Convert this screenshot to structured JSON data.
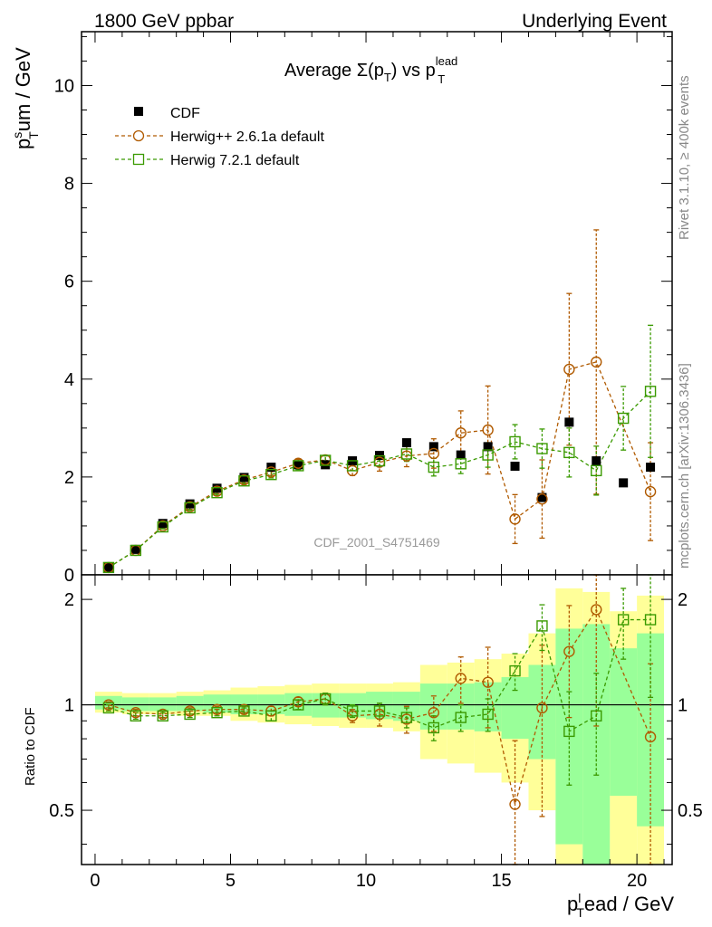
{
  "header": {
    "left": "1800 GeV ppbar",
    "right": "Underlying Event"
  },
  "side_labels": {
    "rivet": "Rivet 3.1.10, ≥ 400k events",
    "mcplots": "mcplots.cern.ch [arXiv:1306.3436]"
  },
  "watermark": "CDF_2001_S4751469",
  "colors": {
    "cdf": "#000000",
    "herwigpp": "#b05a00",
    "herwig7": "#3a9a00",
    "band_yellow": "#ffff99",
    "band_green": "#99ff99"
  },
  "chart_data": [
    {
      "type": "scatter",
      "panel": "main",
      "title": "Average Σ(p_T) vs p_T^lead",
      "title_parts": {
        "a": "Average ",
        "b": "Σ(p",
        "c": "T",
        "d": ") vs p",
        "e": "lead",
        "f": "T"
      },
      "ylabel_parts": {
        "a": "p",
        "b": "s",
        "c": "T",
        "d": "um / GeV"
      },
      "xlim": [
        -0.5,
        21.3
      ],
      "ylim": [
        0,
        11.1
      ],
      "yticks": [
        0,
        2,
        4,
        6,
        8,
        10
      ],
      "ytick_labels": [
        "0",
        "2",
        "4",
        "6",
        "8",
        "10"
      ],
      "legend_position": "top-left",
      "series": [
        {
          "name": "CDF",
          "marker": "filled-square",
          "x": [
            0.5,
            1.5,
            2.5,
            3.5,
            4.5,
            5.5,
            6.5,
            7.5,
            8.5,
            9.5,
            10.5,
            11.5,
            12.5,
            13.5,
            14.5,
            15.5,
            16.5,
            17.5,
            18.5,
            19.5,
            20.5
          ],
          "y": [
            0.15,
            0.52,
            1.05,
            1.45,
            1.77,
            1.99,
            2.2,
            2.25,
            2.25,
            2.33,
            2.44,
            2.7,
            2.62,
            2.45,
            2.62,
            2.22,
            1.58,
            3.12,
            2.33,
            1.88,
            2.2
          ]
        },
        {
          "name": "Herwig++ 2.6.1a default",
          "marker": "open-circle",
          "x": [
            0.5,
            1.5,
            2.5,
            3.5,
            4.5,
            5.5,
            6.5,
            7.5,
            8.5,
            9.5,
            10.5,
            11.5,
            12.5,
            13.5,
            14.5,
            15.5,
            16.5,
            17.5,
            18.5,
            20.5
          ],
          "y": [
            0.15,
            0.5,
            1.0,
            1.39,
            1.71,
            1.94,
            2.1,
            2.28,
            2.35,
            2.13,
            2.3,
            2.43,
            2.48,
            2.9,
            2.96,
            1.14,
            1.55,
            4.2,
            4.35,
            1.7
          ],
          "err": [
            0.02,
            0.03,
            0.04,
            0.05,
            0.05,
            0.06,
            0.07,
            0.08,
            0.09,
            0.1,
            0.18,
            0.22,
            0.3,
            0.45,
            0.9,
            0.5,
            0.8,
            1.55,
            2.7,
            1.0
          ]
        },
        {
          "name": "Herwig 7.2.1 default",
          "marker": "open-square",
          "x": [
            0.5,
            1.5,
            2.5,
            3.5,
            4.5,
            5.5,
            6.5,
            7.5,
            8.5,
            9.5,
            10.5,
            11.5,
            12.5,
            13.5,
            14.5,
            15.5,
            16.5,
            17.5,
            18.5,
            19.5,
            20.5
          ],
          "y": [
            0.15,
            0.5,
            0.98,
            1.37,
            1.68,
            1.92,
            2.05,
            2.23,
            2.34,
            2.23,
            2.33,
            2.47,
            2.2,
            2.27,
            2.45,
            2.72,
            2.58,
            2.5,
            2.13,
            3.2,
            3.75
          ],
          "err": [
            0.02,
            0.03,
            0.04,
            0.05,
            0.05,
            0.06,
            0.07,
            0.08,
            0.09,
            0.1,
            0.12,
            0.15,
            0.18,
            0.2,
            0.25,
            0.35,
            0.4,
            0.5,
            0.5,
            0.65,
            1.35
          ]
        }
      ]
    },
    {
      "type": "scatter",
      "panel": "ratio",
      "ylabel": "Ratio to CDF",
      "xlabel_parts": {
        "a": "p",
        "b": "l",
        "c": "T",
        "d": "ead / GeV"
      },
      "xlim": [
        -0.5,
        21.3
      ],
      "ylim": [
        0.35,
        2.35
      ],
      "xticks": [
        0,
        5,
        10,
        15,
        20
      ],
      "xtick_labels": [
        "0",
        "5",
        "10",
        "15",
        "20"
      ],
      "yticks": [
        0.5,
        1,
        2
      ],
      "ytick_labels": [
        "0.5",
        "1",
        "2"
      ],
      "reference_line": 1,
      "bands": {
        "x_edges": [
          0,
          1,
          2,
          3,
          4,
          5,
          6,
          7,
          8,
          9,
          10,
          11,
          12,
          13,
          14,
          15,
          16,
          17,
          18,
          19,
          20,
          21
        ],
        "yellow": [
          [
            0.95,
            1.09
          ],
          [
            0.94,
            1.08
          ],
          [
            0.94,
            1.08
          ],
          [
            0.93,
            1.09
          ],
          [
            0.93,
            1.1
          ],
          [
            0.9,
            1.12
          ],
          [
            0.89,
            1.13
          ],
          [
            0.88,
            1.14
          ],
          [
            0.87,
            1.15
          ],
          [
            0.86,
            1.15
          ],
          [
            0.86,
            1.15
          ],
          [
            0.84,
            1.16
          ],
          [
            0.7,
            1.3
          ],
          [
            0.68,
            1.32
          ],
          [
            0.64,
            1.35
          ],
          [
            0.6,
            1.4
          ],
          [
            0.5,
            1.6
          ],
          [
            0.35,
            2.15
          ],
          [
            0.25,
            2.1
          ],
          [
            0.35,
            1.85
          ],
          [
            0.35,
            2.05
          ]
        ],
        "green": [
          [
            0.97,
            1.06
          ],
          [
            0.96,
            1.05
          ],
          [
            0.96,
            1.05
          ],
          [
            0.96,
            1.06
          ],
          [
            0.95,
            1.07
          ],
          [
            0.94,
            1.07
          ],
          [
            0.94,
            1.07
          ],
          [
            0.93,
            1.08
          ],
          [
            0.92,
            1.08
          ],
          [
            0.92,
            1.08
          ],
          [
            0.91,
            1.09
          ],
          [
            0.9,
            1.09
          ],
          [
            0.85,
            1.15
          ],
          [
            0.85,
            1.15
          ],
          [
            0.84,
            1.16
          ],
          [
            0.8,
            1.2
          ],
          [
            0.7,
            1.3
          ],
          [
            0.4,
            1.65
          ],
          [
            0.35,
            1.7
          ],
          [
            0.55,
            1.45
          ],
          [
            0.45,
            1.6
          ]
        ]
      },
      "series": [
        {
          "name": "Herwig++ 2.6.1a default",
          "marker": "open-circle",
          "x": [
            0.5,
            1.5,
            2.5,
            3.5,
            4.5,
            5.5,
            6.5,
            7.5,
            8.5,
            9.5,
            10.5,
            11.5,
            12.5,
            13.5,
            14.5,
            15.5,
            16.5,
            17.5,
            18.5,
            20.5
          ],
          "y": [
            1.0,
            0.95,
            0.94,
            0.96,
            0.97,
            0.97,
            0.96,
            1.02,
            1.04,
            0.93,
            0.94,
            0.91,
            0.95,
            1.19,
            1.16,
            0.52,
            0.98,
            1.42,
            1.87,
            0.81
          ],
          "err": [
            0.02,
            0.02,
            0.02,
            0.02,
            0.02,
            0.02,
            0.03,
            0.03,
            0.04,
            0.04,
            0.07,
            0.08,
            0.11,
            0.18,
            0.3,
            0.27,
            0.5,
            0.5,
            1.0,
            0.5
          ]
        },
        {
          "name": "Herwig 7.2.1 default",
          "marker": "open-square",
          "x": [
            0.5,
            1.5,
            2.5,
            3.5,
            4.5,
            5.5,
            6.5,
            7.5,
            8.5,
            9.5,
            10.5,
            11.5,
            12.5,
            13.5,
            14.5,
            15.5,
            16.5,
            17.5,
            18.5,
            19.5,
            20.5
          ],
          "y": [
            0.98,
            0.93,
            0.93,
            0.94,
            0.95,
            0.96,
            0.93,
            1.0,
            1.04,
            0.96,
            0.96,
            0.92,
            0.86,
            0.92,
            0.94,
            1.25,
            1.68,
            0.84,
            0.93,
            1.75,
            1.75
          ],
          "err": [
            0.02,
            0.02,
            0.02,
            0.02,
            0.02,
            0.02,
            0.03,
            0.03,
            0.04,
            0.04,
            0.05,
            0.06,
            0.07,
            0.08,
            0.1,
            0.15,
            0.25,
            0.25,
            0.3,
            0.4,
            0.7
          ]
        }
      ]
    }
  ]
}
